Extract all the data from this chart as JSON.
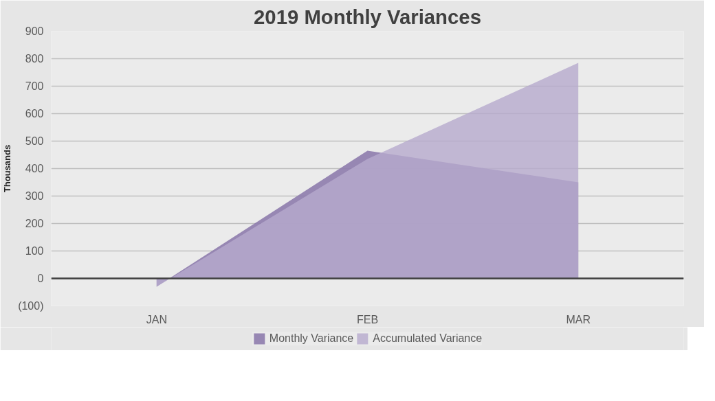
{
  "chart_data": {
    "type": "area",
    "title": "2019 Monthly Variances",
    "ylabel": "Thousands",
    "categories": [
      "JAN",
      "FEB",
      "MAR"
    ],
    "series": [
      {
        "name": "Monthly Variance",
        "color": "#8e7cad",
        "values": [
          -30,
          465,
          350
        ]
      },
      {
        "name": "Accumulated Variance",
        "color": "#b7aacd",
        "values": [
          -30,
          435,
          785
        ]
      }
    ],
    "ylim": [
      -100,
      900
    ],
    "yticks": [
      {
        "value": -100,
        "label": "(100)"
      },
      0,
      100,
      200,
      300,
      400,
      500,
      600,
      700,
      800,
      900
    ],
    "grid": "y",
    "legend": "bottom"
  }
}
